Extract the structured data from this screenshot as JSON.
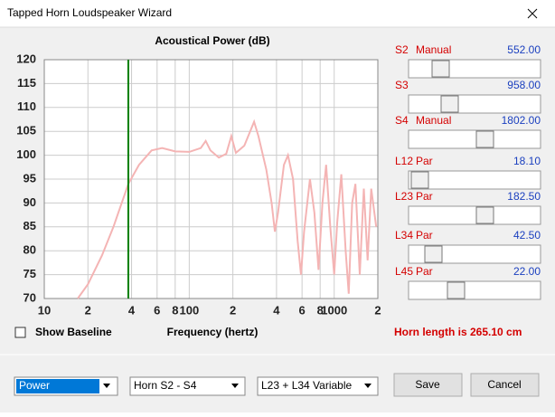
{
  "window": {
    "title": "Tapped Horn Loudspeaker Wizard"
  },
  "chart_data": {
    "type": "line",
    "title": "Acoustical Power (dB)",
    "x_label": "Frequency (hertz)",
    "xscale": "log",
    "grid": true,
    "xlim": [
      10,
      2000
    ],
    "ylim": [
      70,
      120
    ],
    "yticks": [
      70,
      75,
      80,
      85,
      90,
      95,
      100,
      105,
      110,
      115,
      120
    ],
    "xticks": [
      10,
      {
        "value": 20,
        "label": "2"
      },
      {
        "value": 40,
        "label": "4"
      },
      {
        "value": 60,
        "label": "6"
      },
      {
        "value": 80,
        "label": "8"
      },
      100,
      {
        "value": 200,
        "label": "2"
      },
      {
        "value": 400,
        "label": "4"
      },
      {
        "value": 600,
        "label": "6"
      },
      {
        "value": 800,
        "label": "8"
      },
      1000,
      {
        "value": 2000,
        "label": "2"
      }
    ],
    "marker_x": 38,
    "marker_color": "#008000",
    "series": [
      {
        "color": "#f4b4b4",
        "x": [
          17,
          20,
          25,
          30,
          38,
          45,
          55,
          65,
          80,
          100,
          120,
          130,
          140,
          160,
          180,
          195,
          210,
          240,
          280,
          300,
          340,
          370,
          390,
          410,
          450,
          480,
          520,
          560,
          590,
          620,
          680,
          730,
          780,
          830,
          880,
          940,
          1000,
          1050,
          1120,
          1200,
          1260,
          1330,
          1400,
          1500,
          1600,
          1700,
          1800,
          1950
        ],
        "values": [
          70,
          73,
          79,
          85,
          94,
          98,
          101,
          101.5,
          100.8,
          100.7,
          101.5,
          103,
          101,
          99.5,
          100.3,
          104,
          100.5,
          102,
          107,
          104,
          97,
          90,
          84,
          88,
          98,
          100,
          95,
          82,
          75,
          84,
          95,
          88,
          76,
          90,
          98,
          85,
          75,
          86,
          96,
          80,
          71,
          90,
          94,
          75,
          93,
          78,
          93,
          85
        ]
      }
    ]
  },
  "sliders": [
    {
      "label": "S2",
      "mode": "Manual",
      "value": "552.00"
    },
    {
      "label": "S3",
      "value": "958.00"
    },
    {
      "label": "S4",
      "mode": "Manual",
      "value": "1802.00"
    },
    {
      "label": "L12",
      "mode": "Par",
      "value": "18.10"
    },
    {
      "label": "L23",
      "mode": "Par",
      "value": "182.50"
    },
    {
      "label": "L34",
      "mode": "Par",
      "value": "42.50"
    },
    {
      "label": "L45",
      "mode": "Par",
      "value": "22.00"
    }
  ],
  "show_baseline": "Show Baseline",
  "horn_length": "Horn length is 265.10 cm",
  "dropdowns": [
    "Power",
    "Horn S2 - S4",
    "L23 + L34 Variable"
  ],
  "buttons": [
    "Save",
    "Cancel"
  ]
}
